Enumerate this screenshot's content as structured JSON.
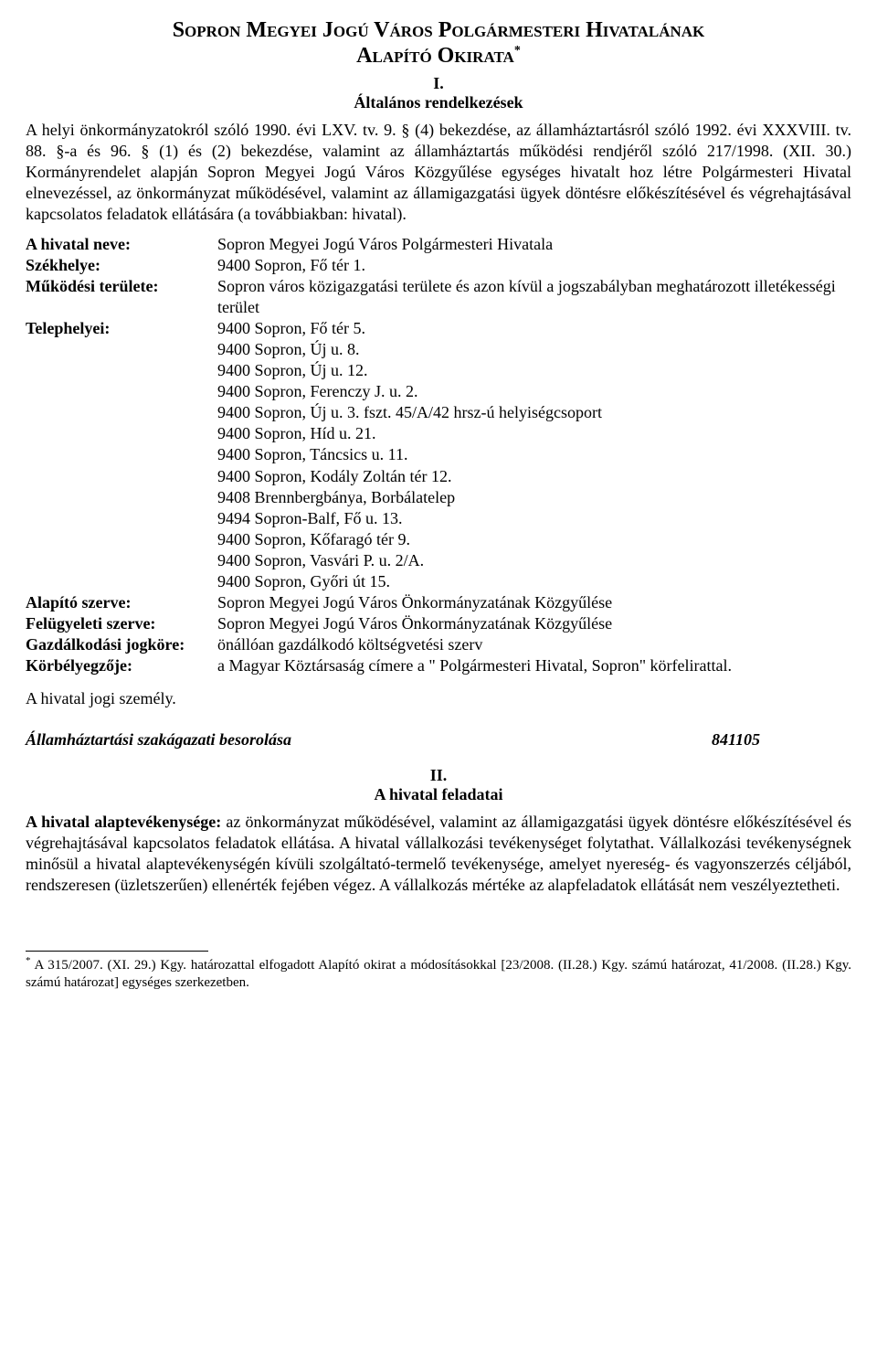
{
  "title": {
    "line1": "Sopron Megyei Jogú Város Polgármesteri Hivatalának",
    "line2": "Alapító Okirata",
    "asterisk": "*"
  },
  "section1": {
    "num": "I.",
    "heading": "Általános rendelkezések",
    "intro": "A helyi önkormányzatokról szóló 1990. évi LXV. tv. 9. § (4) bekezdése, az államháztartásról szóló 1992. évi XXXVIII. tv. 88. §-a és 96. § (1) és (2) bekezdése, valamint az államháztartás működési rendjéről szóló 217/1998. (XII. 30.) Kormányrendelet alapján Sopron Megyei Jogú Város Közgyűlése egységes hivatalt hoz létre Polgármesteri Hivatal elnevezéssel, az önkormányzat működésével, valamint az államigazgatási ügyek döntésre előkészítésével és végrehajtásával kapcsolatos feladatok ellátására (a továbbiakban: hivatal)."
  },
  "defs": {
    "name_label": "A hivatal neve:",
    "name_value": "Sopron Megyei Jogú Város Polgármesteri Hivatala",
    "seat_label": "Székhelye:",
    "seat_value": "9400 Sopron, Fő tér 1.",
    "area_label": "Működési területe:",
    "area_value": "Sopron város közigazgatási területe és azon kívül a jogszabályban meghatározott illetékességi terület",
    "sites_label": "Telephelyei:",
    "sites": [
      "9400 Sopron, Fő tér 5.",
      "9400 Sopron, Új u. 8.",
      "9400 Sopron, Új u. 12.",
      "9400 Sopron, Ferenczy J. u. 2.",
      "9400 Sopron, Új u. 3. fszt. 45/A/42 hrsz-ú helyiségcsoport",
      "9400 Sopron, Híd u. 21.",
      "9400 Sopron, Táncsics u. 11.",
      "9400 Sopron, Kodály Zoltán tér 12.",
      "9408 Brennbergbánya, Borbálatelep",
      "9494 Sopron-Balf, Fő u. 13.",
      "9400 Sopron, Kőfaragó tér 9.",
      "9400 Sopron, Vasvári P. u. 2/A.",
      "9400 Sopron, Győri út 15."
    ],
    "founder_label": "Alapító szerve:",
    "founder_value": "Sopron Megyei Jogú Város Önkormányzatának Közgyűlése",
    "supervisor_label": "Felügyeleti szerve:",
    "supervisor_value": "Sopron Megyei Jogú Város Önkormányzatának Közgyűlése",
    "economy_label": "Gazdálkodási jogköre:",
    "economy_value": "önállóan gazdálkodó költségvetési szerv",
    "seal_label": "Körbélyegzője:",
    "seal_value": "a Magyar Köztársaság címere a \" Polgármesteri Hivatal, Sopron\" körfelirattal."
  },
  "legal_person": "A hivatal jogi személy.",
  "classification": {
    "label": "Államháztartási szakágazati besorolása",
    "code": "841105"
  },
  "section2": {
    "num": "II.",
    "heading": "A hivatal feladatai",
    "lead_bold": "A hivatal alaptevékenysége:",
    "body": " az önkormányzat működésével, valamint az államigazgatási ügyek döntésre előkészítésével és végrehajtásával kapcsolatos feladatok ellátása. A hivatal vállalkozási tevékenységet folytathat. Vállalkozási tevékenységnek minősül a hivatal alaptevékenységén kívüli szolgáltató-termelő tevékenysége, amelyet nyereség- és vagyonszerzés céljából, rendszeresen (üzletszerűen) ellenérték fejében végez. A vállalkozás mértéke az alapfeladatok ellátását nem veszélyeztetheti."
  },
  "footnote": {
    "marker": "*",
    "text": " A 315/2007. (XI. 29.) Kgy. határozattal elfogadott Alapító okirat a módosításokkal [23/2008. (II.28.) Kgy. számú határozat, 41/2008. (II.28.) Kgy. számú határozat] egységes szerkezetben."
  }
}
